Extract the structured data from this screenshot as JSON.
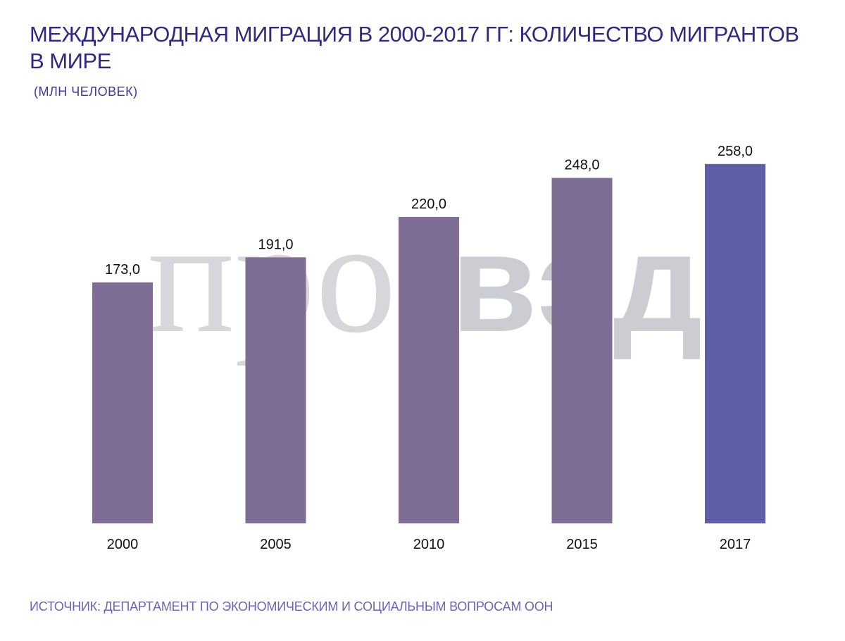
{
  "header": {
    "title": "МЕЖДУНАРОДНАЯ МИГРАЦИЯ В 2000-2017 ГГ: КОЛИЧЕСТВО МИГРАНТОВ В МИРЕ",
    "units": "(МЛН ЧЕЛОВЕК)"
  },
  "watermark": {
    "text": "провэд"
  },
  "footer": {
    "source": "ИСТОЧНИК: ДЕПАРТАМЕНТ ПО ЭКОНОМИЧЕСКИМ И СОЦИАЛЬНЫМ ВОПРОСАМ ООН"
  },
  "colors": {
    "bar": "#7e6e96",
    "bar_highlight": "#5e5fa8",
    "title": "#2f2a7e",
    "source": "#6c65b5"
  },
  "chart_data": {
    "type": "bar",
    "title": "МЕЖДУНАРОДНАЯ МИГРАЦИЯ В 2000-2017 ГГ: КОЛИЧЕСТВО МИГРАНТОВ В МИРЕ",
    "subtitle": "(МЛН ЧЕЛОВЕК)",
    "categories": [
      "2000",
      "2005",
      "2010",
      "2015",
      "2017"
    ],
    "values": [
      173.0,
      191.0,
      220.0,
      248.0,
      258.0
    ],
    "value_labels": [
      "173,0",
      "191,0",
      "220,0",
      "248,0",
      "258,0"
    ],
    "highlight_index": 4,
    "xlabel": "",
    "ylabel": "",
    "ylim": [
      0,
      260
    ],
    "grid": false,
    "legend": "none"
  }
}
